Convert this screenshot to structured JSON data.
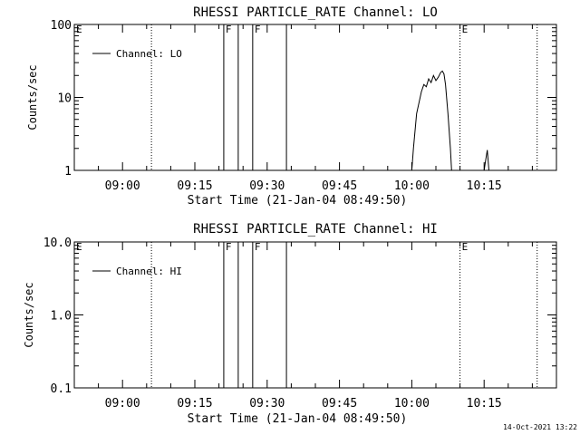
{
  "timestamp": "14-Oct-2021 13:22",
  "chart_data": [
    {
      "type": "line",
      "title": "RHESSI PARTICLE_RATE Channel: LO",
      "xlabel": "Start Time (21-Jan-04 08:49:50)",
      "ylabel": "Counts/sec",
      "x_unit": "minutes",
      "xlim": [
        "08:50",
        "10:30"
      ],
      "x_ticks": [
        "09:00",
        "09:15",
        "09:30",
        "09:45",
        "10:00",
        "10:15"
      ],
      "y_scale": "log",
      "ylim": [
        1,
        100
      ],
      "y_ticks": [
        "1",
        "10",
        "100"
      ],
      "legend": {
        "label": "Channel: LO",
        "position": "top-left"
      },
      "markers_solid": [
        {
          "x": "09:21",
          "label": "F"
        },
        {
          "x": "09:24",
          "label": ""
        },
        {
          "x": "09:27",
          "label": "F"
        },
        {
          "x": "09:34",
          "label": ""
        }
      ],
      "markers_dotted": [
        {
          "x": "08:50",
          "label": "E"
        },
        {
          "x": "09:06",
          "label": ""
        },
        {
          "x": "10:10",
          "label": "E"
        },
        {
          "x": "10:26",
          "label": ""
        }
      ],
      "series": [
        {
          "x": [
            "10:00",
            "10:00:20",
            "10:01",
            "10:02",
            "10:02:30",
            "10:03",
            "10:03:30",
            "10:04",
            "10:04:30",
            "10:05",
            "10:05:30",
            "10:06",
            "10:06:20",
            "10:06:40",
            "10:07",
            "10:07:30",
            "10:08",
            "10:08:15"
          ],
          "y": [
            1,
            2,
            6,
            12,
            15,
            14,
            18,
            16,
            20,
            17,
            19,
            22,
            23,
            21,
            15,
            6,
            2,
            1
          ]
        },
        {
          "x": [
            "10:15",
            "10:15:20",
            "10:15:40",
            "10:16"
          ],
          "y": [
            1,
            1.4,
            1.9,
            1
          ]
        }
      ]
    },
    {
      "type": "line",
      "title": "RHESSI PARTICLE_RATE Channel: HI",
      "xlabel": "Start Time (21-Jan-04 08:49:50)",
      "ylabel": "Counts/sec",
      "xlim": [
        "08:50",
        "10:30"
      ],
      "x_ticks": [
        "09:00",
        "09:15",
        "09:30",
        "09:45",
        "10:00",
        "10:15"
      ],
      "y_scale": "log",
      "ylim": [
        0.1,
        10
      ],
      "y_ticks": [
        "0.1",
        "1.0",
        "10.0"
      ],
      "legend": {
        "label": "Channel: HI",
        "position": "top-left"
      },
      "markers_solid": [
        {
          "x": "09:21",
          "label": "F"
        },
        {
          "x": "09:24",
          "label": ""
        },
        {
          "x": "09:27",
          "label": "F"
        },
        {
          "x": "09:34",
          "label": ""
        }
      ],
      "markers_dotted": [
        {
          "x": "08:50",
          "label": "E"
        },
        {
          "x": "09:06",
          "label": ""
        },
        {
          "x": "10:10",
          "label": "E"
        },
        {
          "x": "10:26",
          "label": ""
        }
      ],
      "series": []
    }
  ]
}
